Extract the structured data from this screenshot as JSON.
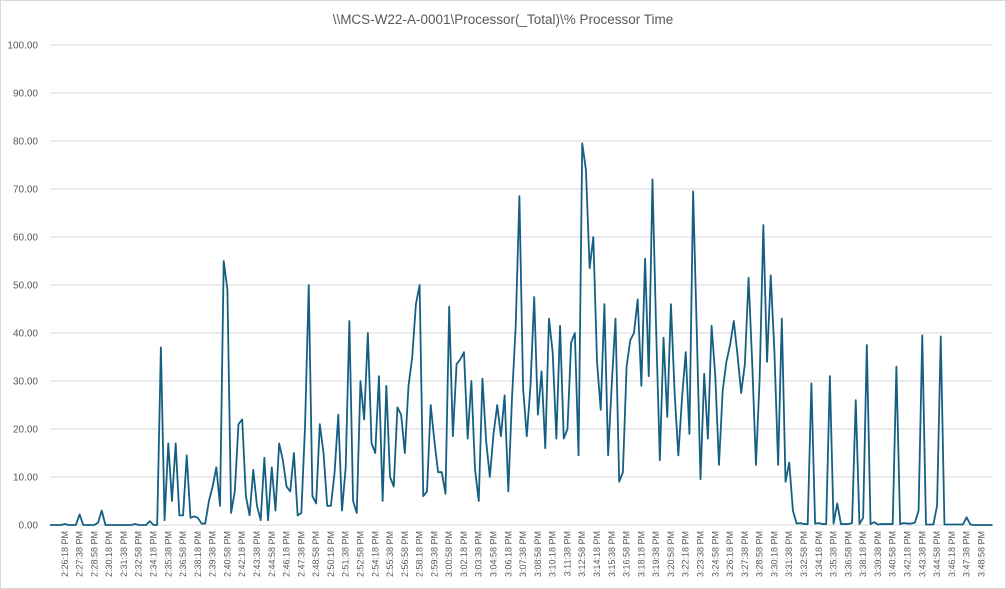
{
  "chart_data": {
    "type": "line",
    "title": "\\\\MCS-W22-A-0001\\Processor(_Total)\\% Processor Time",
    "xlabel": "",
    "ylabel": "",
    "ylim": [
      0,
      100
    ],
    "y_ticks": [
      "0.00",
      "10.00",
      "20.00",
      "30.00",
      "40.00",
      "50.00",
      "60.00",
      "70.00",
      "80.00",
      "90.00",
      "100.00"
    ],
    "grid": "horizontal",
    "legend": "none",
    "line_color": "#156082",
    "sample_interval_seconds": 20,
    "x_tick_labels": [
      "2:26:18 PM",
      "2:27:38 PM",
      "2:28:58 PM",
      "2:30:18 PM",
      "2:31:38 PM",
      "2:32:58 PM",
      "2:34:18 PM",
      "2:35:38 PM",
      "2:36:58 PM",
      "2:38:18 PM",
      "2:39:38 PM",
      "2:40:58 PM",
      "2:42:18 PM",
      "2:43:38 PM",
      "2:44:58 PM",
      "2:46:18 PM",
      "2:47:38 PM",
      "2:48:58 PM",
      "2:50:18 PM",
      "2:51:38 PM",
      "2:52:58 PM",
      "2:54:18 PM",
      "2:55:38 PM",
      "2:56:58 PM",
      "2:58:18 PM",
      "2:59:38 PM",
      "3:00:58 PM",
      "3:02:18 PM",
      "3:03:38 PM",
      "3:04:58 PM",
      "3:06:18 PM",
      "3:07:38 PM",
      "3:08:58 PM",
      "3:10:18 PM",
      "3:11:38 PM",
      "3:12:58 PM",
      "3:14:18 PM",
      "3:15:38 PM",
      "3:16:58 PM",
      "3:18:18 PM",
      "3:19:38 PM",
      "3:20:58 PM",
      "3:22:18 PM",
      "3:23:38 PM",
      "3:24:58 PM",
      "3:26:18 PM",
      "3:27:38 PM",
      "3:28:58 PM",
      "3:30:18 PM",
      "3:31:38 PM",
      "3:32:58 PM",
      "3:34:18 PM",
      "3:35:38 PM",
      "3:36:58 PM",
      "3:38:18 PM",
      "3:39:38 PM",
      "3:40:58 PM",
      "3:42:18 PM",
      "3:43:38 PM",
      "3:44:58 PM",
      "3:46:18 PM",
      "3:47:38 PM",
      "3:48:58 PM"
    ],
    "values": [
      0,
      0,
      0,
      0,
      0.2,
      0,
      0,
      0,
      2.2,
      0,
      0,
      0,
      0,
      0.5,
      3.0,
      0,
      0,
      0,
      0,
      0,
      0,
      0,
      0,
      0.2,
      0,
      0,
      0,
      0.8,
      0,
      0,
      37,
      1,
      17,
      5,
      17,
      2,
      2,
      14.5,
      1.5,
      1.8,
      1.5,
      0.3,
      0.3,
      5,
      8,
      12,
      4,
      55,
      49,
      2.5,
      7,
      21,
      22,
      6,
      2,
      11.5,
      4,
      1,
      14,
      1,
      12,
      3,
      17,
      13.5,
      8,
      7,
      15,
      2,
      2.5,
      20.5,
      50,
      6,
      4.5,
      21,
      15,
      4,
      4,
      11,
      23,
      3,
      12,
      42.5,
      5,
      2.5,
      30,
      22,
      40,
      17,
      15,
      31,
      5,
      29,
      10,
      8,
      24.5,
      23,
      15,
      29,
      35,
      46,
      50,
      6,
      7,
      25,
      17.5,
      11,
      11,
      6.5,
      45.5,
      18.5,
      33.5,
      34.5,
      36,
      18,
      30,
      11.5,
      5,
      30.5,
      17.5,
      10,
      19,
      25,
      18.5,
      27,
      7,
      26.5,
      41.5,
      68.5,
      28.5,
      18.5,
      29,
      47.5,
      23,
      32,
      16,
      43,
      36,
      18,
      41.5,
      18,
      20,
      38,
      40,
      14.5,
      79.5,
      74,
      53.5,
      60,
      34,
      24,
      46,
      14.5,
      29.5,
      43,
      9,
      11,
      33,
      38.5,
      40,
      47,
      29,
      55.5,
      31,
      72,
      40.5,
      13.5,
      39,
      22.5,
      46,
      27.5,
      14.5,
      26.5,
      36,
      19,
      69.5,
      40,
      9.5,
      31.5,
      18,
      41.5,
      31,
      12.5,
      28,
      34,
      37.5,
      42.5,
      35.5,
      27.5,
      33.5,
      51.5,
      33.5,
      12.5,
      30.5,
      62.5,
      34,
      52,
      36,
      12.5,
      43,
      9,
      13,
      3,
      0.3,
      0.4,
      0.2,
      0.2,
      29.5,
      0.3,
      0.4,
      0.2,
      0.2,
      31,
      0.3,
      4.5,
      0.2,
      0.2,
      0.2,
      0.4,
      26,
      0.2,
      1.5,
      37.5,
      0.2,
      0.6,
      0.1,
      0.2,
      0.2,
      0.2,
      0.2,
      33,
      0.2,
      0.4,
      0.3,
      0.3,
      0.5,
      3,
      39.5,
      0.1,
      0.1,
      0.1,
      4,
      39.3,
      0.1,
      0.1,
      0.1,
      0.1,
      0.1,
      0.1,
      1.6,
      0.1,
      0,
      0,
      0,
      0,
      0,
      0
    ]
  }
}
